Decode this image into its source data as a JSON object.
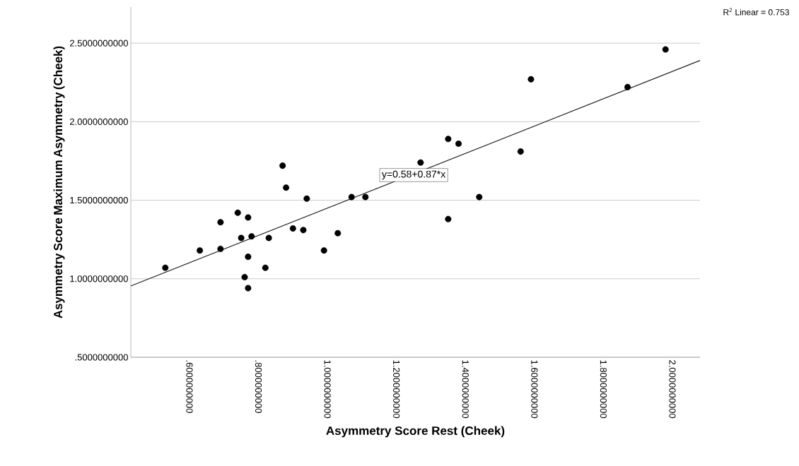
{
  "chart_data": {
    "type": "scatter",
    "xlabel": "Asymmetry Score Rest (Cheek)",
    "ylabel": "Asymmetry Score Maximum Asymmetry (Cheek)",
    "x": [
      0.53,
      0.63,
      0.69,
      0.69,
      0.74,
      0.75,
      0.77,
      0.78,
      0.77,
      0.76,
      0.77,
      0.82,
      0.83,
      0.87,
      0.88,
      0.9,
      0.93,
      0.94,
      0.99,
      1.03,
      1.07,
      1.11,
      1.27,
      1.35,
      1.38,
      1.35,
      1.44,
      1.56,
      1.59,
      1.87,
      1.98
    ],
    "series": [
      {
        "color": "#000000",
        "marker": "circle",
        "values": [
          1.07,
          1.18,
          1.19,
          1.36,
          1.42,
          1.26,
          1.39,
          1.27,
          1.14,
          1.01,
          0.94,
          1.07,
          1.26,
          1.72,
          1.58,
          1.32,
          1.31,
          1.51,
          1.18,
          1.29,
          1.52,
          1.52,
          1.74,
          1.89,
          1.86,
          1.38,
          1.52,
          1.81,
          2.27,
          2.22,
          2.46
        ]
      },
      {
        "type": "line",
        "color": "#222222",
        "marker": "none",
        "line_style": "solid",
        "x": [
          0.43,
          2.08
        ],
        "values": [
          0.954,
          2.39
        ]
      }
    ],
    "xlim": [
      0.43,
      2.08
    ],
    "ylim": [
      0.5,
      2.73
    ],
    "xticks": [
      {
        "value": 0.6,
        "label": ".6000000000"
      },
      {
        "value": 0.8,
        "label": ".8000000000"
      },
      {
        "value": 1.0,
        "label": "1.0000000000"
      },
      {
        "value": 1.2,
        "label": "1.2000000000"
      },
      {
        "value": 1.4,
        "label": "1.4000000000"
      },
      {
        "value": 1.6,
        "label": "1.6000000000"
      },
      {
        "value": 1.8,
        "label": "1.8000000000"
      },
      {
        "value": 2.0,
        "label": "2.0000000000"
      }
    ],
    "yticks": [
      {
        "value": 0.5,
        "label": ".5000000000"
      },
      {
        "value": 1.0,
        "label": "1.0000000000"
      },
      {
        "value": 1.5,
        "label": "1.5000000000"
      },
      {
        "value": 2.0,
        "label": "2.0000000000"
      },
      {
        "value": 2.5,
        "label": "2.5000000000"
      }
    ],
    "grid": "y",
    "annotations": [
      {
        "text": "y=0.58+0.87*x",
        "x": 1.25,
        "y": 1.66
      },
      "R$^{2}$ Linear = 0.753"
    ]
  }
}
